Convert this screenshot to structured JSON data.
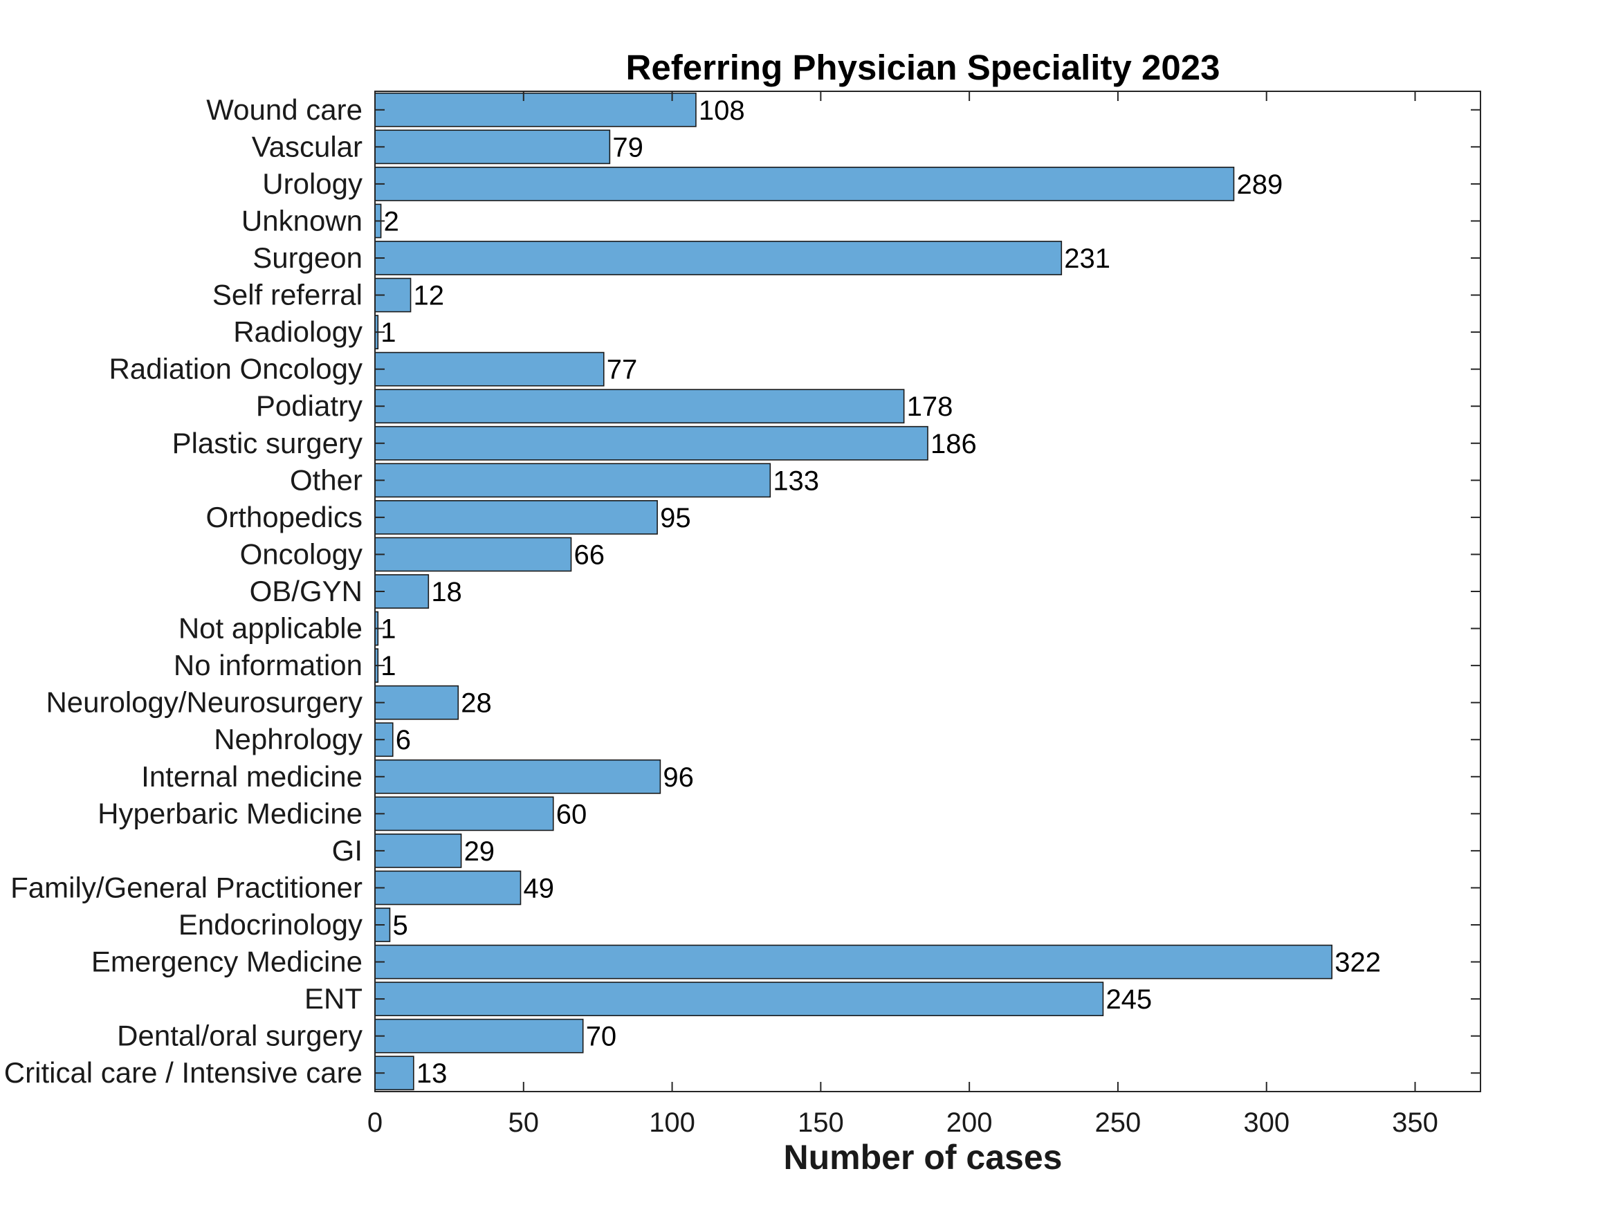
{
  "chart_data": {
    "type": "bar",
    "orientation": "horizontal",
    "title": "Referring Physician Speciality 2023",
    "xlabel": "Number of cases",
    "ylabel": "",
    "xlim": [
      0,
      372
    ],
    "xticks": [
      0,
      50,
      100,
      150,
      200,
      250,
      300,
      350
    ],
    "grid": false,
    "legend": "none",
    "bar_color": "#67a9d9",
    "bar_edge_color": "#1a1a1a",
    "categories": [
      "Wound care",
      "Vascular",
      "Urology",
      "Unknown",
      "Surgeon",
      "Self referral",
      "Radiology",
      "Radiation Oncology",
      "Podiatry",
      "Plastic surgery",
      "Other",
      "Orthopedics",
      "Oncology",
      "OB/GYN",
      "Not applicable",
      "No information",
      "Neurology/Neurosurgery",
      "Nephrology",
      "Internal medicine",
      "Hyperbaric Medicine",
      "GI",
      "Family/General Practitioner",
      "Endocrinology",
      "Emergency Medicine",
      "ENT",
      "Dental/oral surgery",
      "Critical care / Intensive care"
    ],
    "values": [
      108,
      79,
      289,
      2,
      231,
      12,
      1,
      77,
      178,
      186,
      133,
      95,
      66,
      18,
      1,
      1,
      28,
      6,
      96,
      60,
      29,
      49,
      5,
      322,
      245,
      70,
      13
    ]
  }
}
